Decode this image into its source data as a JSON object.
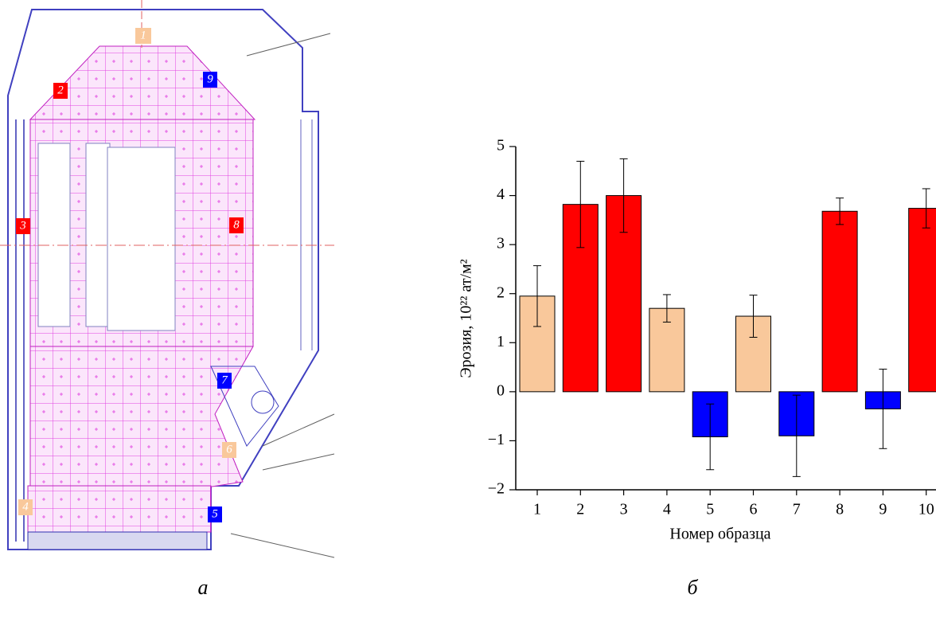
{
  "chart_data": {
    "type": "bar",
    "categories": [
      "1",
      "2",
      "3",
      "4",
      "5",
      "6",
      "7",
      "8",
      "9",
      "10"
    ],
    "values": [
      1.95,
      3.82,
      4.0,
      1.7,
      -0.92,
      1.54,
      -0.9,
      3.68,
      -0.35,
      3.74
    ],
    "errors": [
      0.62,
      0.88,
      0.75,
      0.28,
      0.67,
      0.43,
      0.83,
      0.27,
      0.81,
      0.4
    ],
    "colors": [
      "#f9c89b",
      "#ff0000",
      "#ff0000",
      "#f9c89b",
      "#0000ff",
      "#f9c89b",
      "#0000ff",
      "#ff0000",
      "#0000ff",
      "#ff0000"
    ],
    "ylabel": "Эрозия, 10²² ат/м²",
    "xlabel": "Номер образца",
    "ylim": [
      -2,
      5
    ],
    "yticks": [
      {
        "value": -2,
        "label": "−2"
      },
      {
        "value": -1,
        "label": "−1"
      },
      0,
      1,
      2,
      3,
      4,
      5
    ]
  },
  "diagram": {
    "labels": [
      "1",
      "2",
      "3",
      "4",
      "5",
      "6",
      "7",
      "8",
      "9"
    ]
  },
  "captions": [
    "а",
    "б"
  ]
}
